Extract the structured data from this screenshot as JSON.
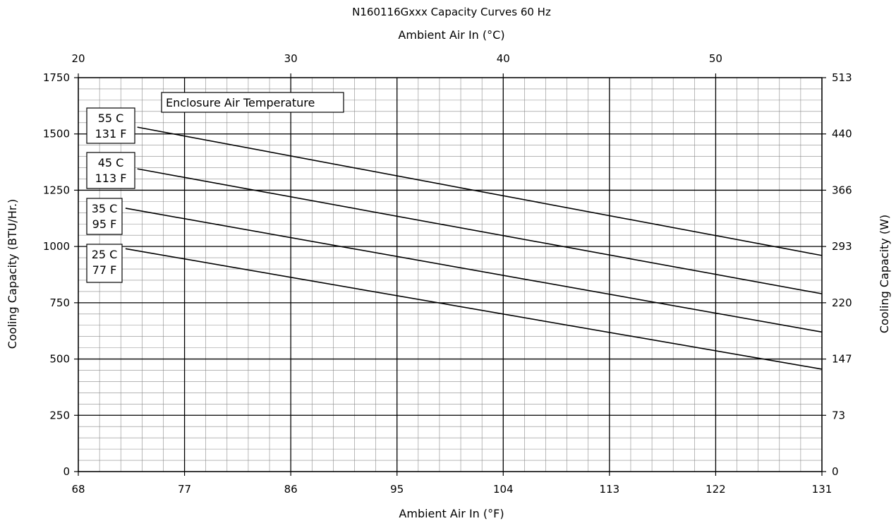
{
  "chart_data": {
    "type": "line",
    "title": "N160116Gxxx Capacity Curves 60 Hz",
    "xlabel": "Ambient Air In (°F)",
    "x2label": "Ambient Air In (°C)",
    "ylabel": "Cooling Capacity (BTU/Hr.)",
    "y2label": "Cooling Capacity (W)",
    "xlim": [
      68,
      131
    ],
    "ylim": [
      0,
      1750
    ],
    "x_ticks": [
      68,
      77,
      86,
      95,
      104,
      113,
      122,
      131
    ],
    "x2_ticks": [
      20,
      30,
      40,
      50
    ],
    "y_ticks": [
      0,
      250,
      500,
      750,
      1000,
      1250,
      1500,
      1750
    ],
    "y2_ticks": [
      0,
      73,
      147,
      220,
      293,
      366,
      440,
      513
    ],
    "grid": true,
    "legend_title": "Enclosure Air Temperature",
    "series": [
      {
        "name": "55 C / 131 F",
        "label_lines": [
          "55 C",
          "131 F"
        ],
        "x": [
          73,
          131
        ],
        "y": [
          1530,
          960
        ]
      },
      {
        "name": "45 C / 113 F",
        "label_lines": [
          "45 C",
          "113 F"
        ],
        "x": [
          73,
          131
        ],
        "y": [
          1345,
          790
        ]
      },
      {
        "name": "35 C / 95 F",
        "label_lines": [
          "35 C",
          "95 F"
        ],
        "x": [
          72,
          131
        ],
        "y": [
          1170,
          620
        ]
      },
      {
        "name": "25 C / 77 F",
        "label_lines": [
          "25 C",
          "77 F"
        ],
        "x": [
          72,
          131
        ],
        "y": [
          990,
          455
        ]
      }
    ]
  }
}
